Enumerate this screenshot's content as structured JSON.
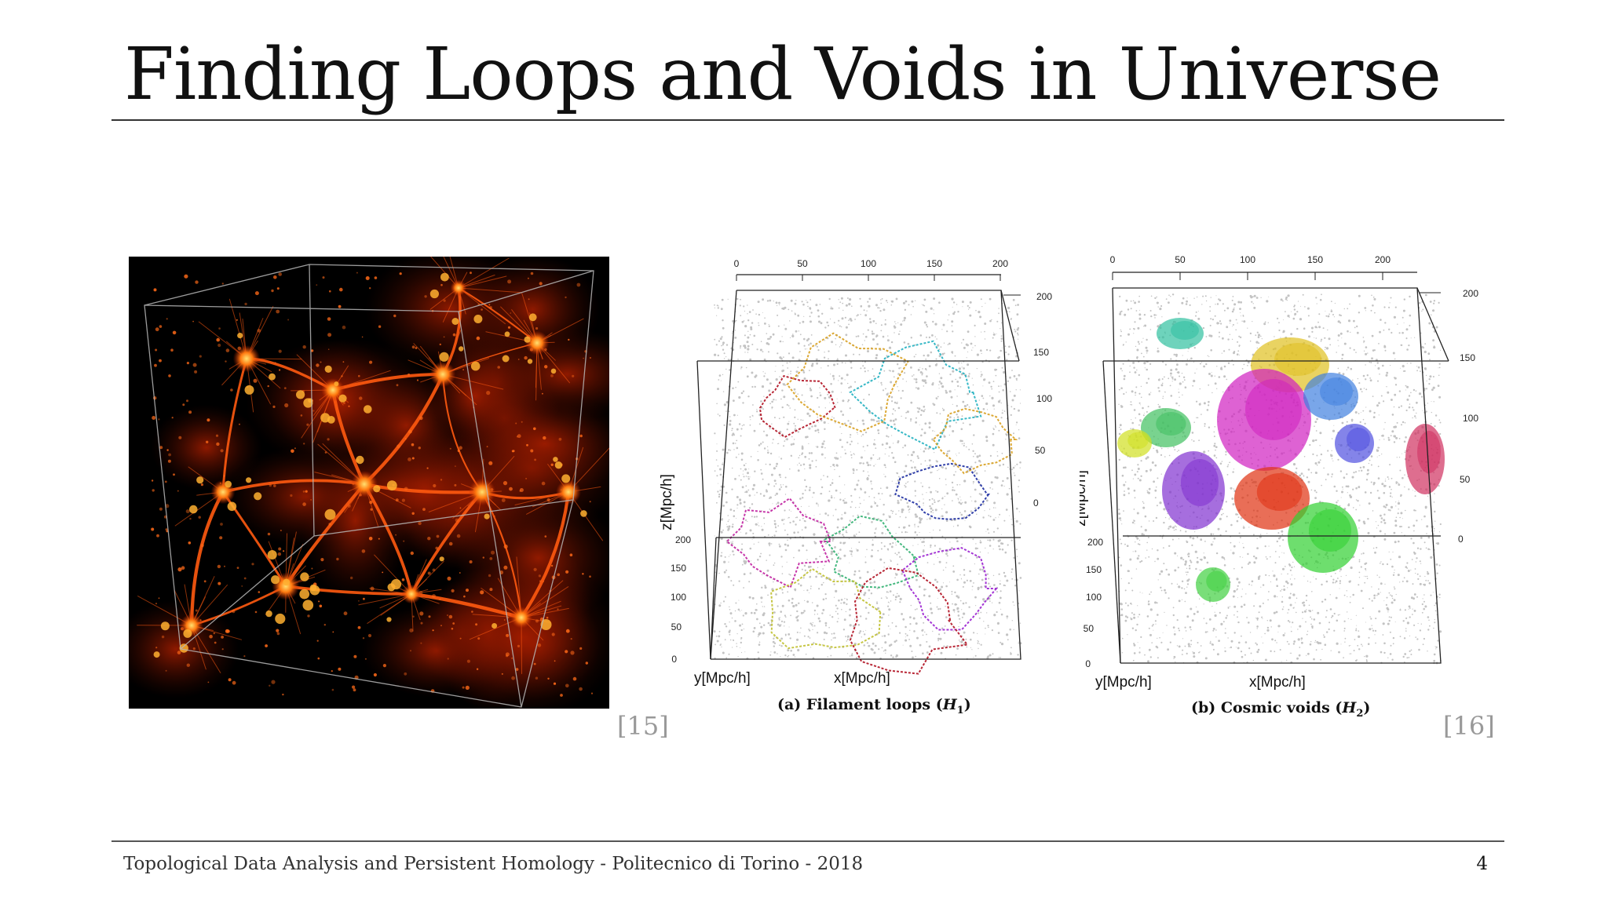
{
  "slide": {
    "title": "Finding Loops and Voids in Universe",
    "footer": "Topological Data Analysis and Persistent Homology - Politecnico di Torino - 2018",
    "page_number": "4"
  },
  "figures": {
    "left": {
      "reference": "[15]"
    },
    "middle": {
      "caption_prefix": "(a) Filament loops (",
      "caption_symbol": "H",
      "caption_subscript": "1",
      "caption_suffix": ")",
      "x_axis_label": "x[Mpc/h]",
      "y_axis_label": "y[Mpc/h]",
      "z_axis_label": "z[Mpc/h]",
      "top_ticks": [
        "0",
        "50",
        "100",
        "150",
        "200"
      ],
      "right_ticks": [
        "200",
        "150",
        "100",
        "50",
        "0"
      ],
      "left_ticks": [
        "200",
        "150",
        "100",
        "50",
        "0"
      ]
    },
    "right": {
      "caption_prefix": "(b) Cosmic voids (",
      "caption_symbol": "H",
      "caption_subscript": "2",
      "caption_suffix": ")",
      "x_axis_label": "x[Mpc/h]",
      "y_axis_label": "y[Mpc/h]",
      "z_axis_label": "z[Mpc/h]",
      "top_ticks": [
        "0",
        "50",
        "100",
        "150",
        "200"
      ],
      "right_ticks": [
        "200",
        "150",
        "100",
        "50",
        "0"
      ],
      "left_ticks": [
        "200",
        "150",
        "100",
        "50",
        "0"
      ],
      "reference": "[16]"
    }
  },
  "colors": {
    "title_text": "#111111",
    "rule": "#333333",
    "reference_text": "#999999",
    "nebula_bright": "#ffb030",
    "nebula_mid": "#e03a00"
  }
}
